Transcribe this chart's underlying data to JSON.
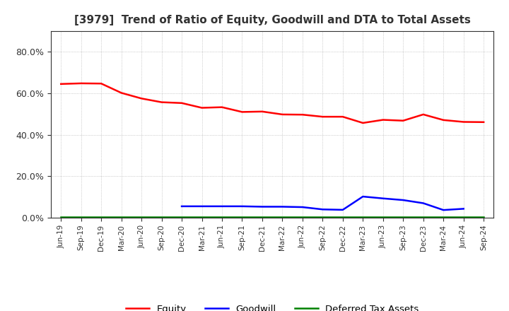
{
  "title": "[3979]  Trend of Ratio of Equity, Goodwill and DTA to Total Assets",
  "x_labels": [
    "Jun-19",
    "Sep-19",
    "Dec-19",
    "Mar-20",
    "Jun-20",
    "Sep-20",
    "Dec-20",
    "Mar-21",
    "Jun-21",
    "Sep-21",
    "Dec-21",
    "Mar-22",
    "Jun-22",
    "Sep-22",
    "Dec-22",
    "Mar-23",
    "Jun-23",
    "Sep-23",
    "Dec-23",
    "Mar-24",
    "Jun-24",
    "Sep-24"
  ],
  "equity": [
    0.645,
    0.648,
    0.647,
    0.602,
    0.575,
    0.557,
    0.553,
    0.53,
    0.533,
    0.51,
    0.512,
    0.498,
    0.497,
    0.487,
    0.487,
    0.457,
    0.472,
    0.468,
    0.498,
    0.471,
    0.462,
    0.461
  ],
  "goodwill": [
    null,
    null,
    null,
    null,
    null,
    null,
    0.055,
    0.055,
    0.055,
    0.055,
    0.053,
    0.053,
    0.051,
    0.04,
    0.038,
    0.102,
    0.093,
    0.085,
    0.07,
    0.037,
    0.043,
    null
  ],
  "dta": [
    0.005,
    0.005,
    0.005,
    0.005,
    0.005,
    0.005,
    0.005,
    0.005,
    0.005,
    0.005,
    0.005,
    0.005,
    0.005,
    0.005,
    0.005,
    0.005,
    0.005,
    0.005,
    0.005,
    0.005,
    0.005,
    0.005
  ],
  "equity_color": "#FF0000",
  "goodwill_color": "#0000FF",
  "dta_color": "#008000",
  "background_color": "#FFFFFF",
  "grid_color": "#AAAAAA",
  "ylim": [
    0.0,
    0.9
  ],
  "yticks": [
    0.0,
    0.2,
    0.4,
    0.6,
    0.8
  ],
  "title_fontsize": 11,
  "legend_labels": [
    "Equity",
    "Goodwill",
    "Deferred Tax Assets"
  ]
}
